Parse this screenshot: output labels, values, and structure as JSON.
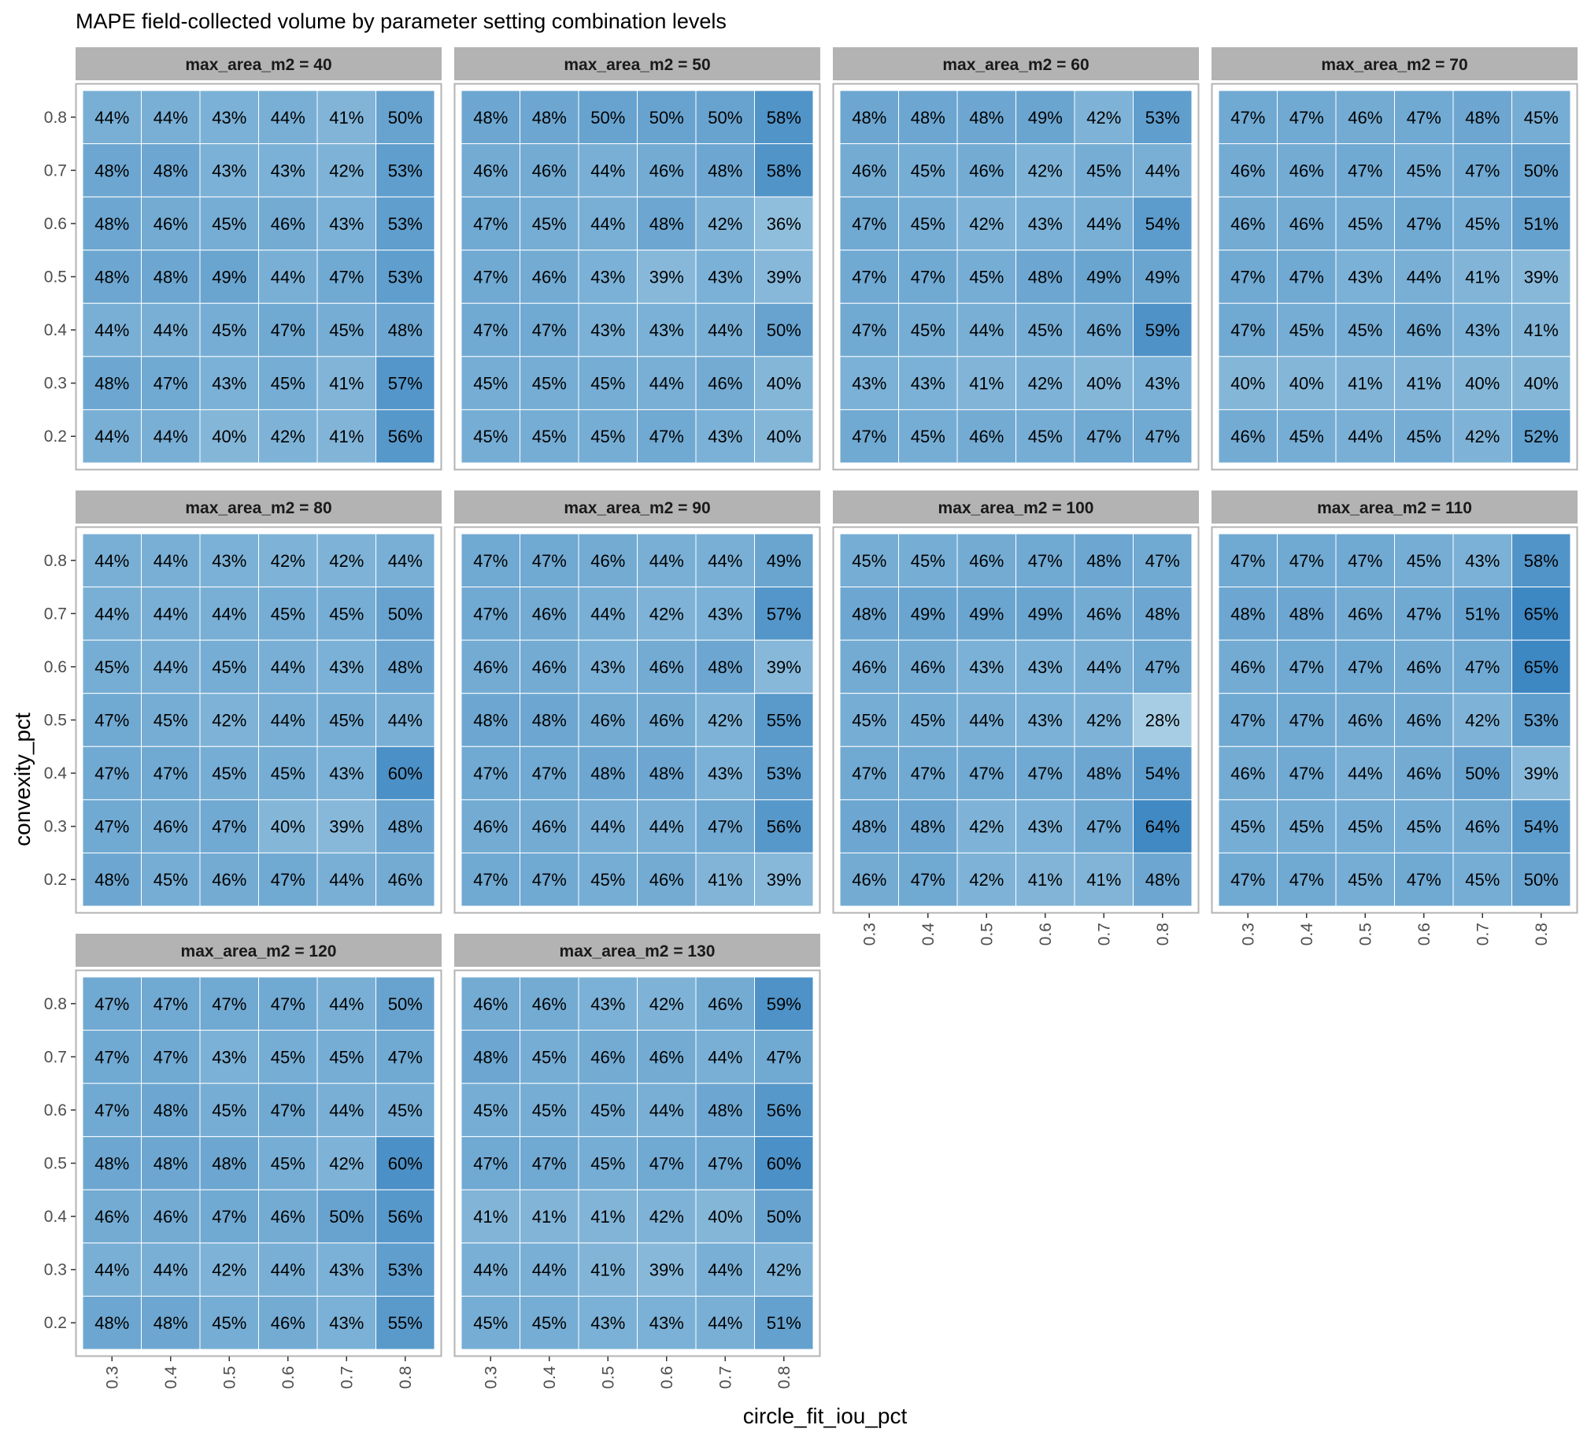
{
  "chart_data": {
    "type": "heatmap",
    "title": "MAPE field-collected volume by parameter setting combination levels",
    "xlabel": "circle_fit_iou_pct",
    "ylabel": "convexity_pct",
    "facet_variable": "max_area_m2",
    "x_categories": [
      "0.3",
      "0.4",
      "0.5",
      "0.6",
      "0.7",
      "0.8"
    ],
    "y_categories": [
      "0.8",
      "0.7",
      "0.6",
      "0.5",
      "0.4",
      "0.3",
      "0.2"
    ],
    "value_format": "percent",
    "color_low": "#a6cde3",
    "color_high": "#3d87c2",
    "value_range": [
      28,
      65
    ],
    "panels": [
      {
        "label": "max_area_m2 = 40",
        "values": [
          [
            44,
            44,
            43,
            44,
            41,
            50
          ],
          [
            48,
            48,
            43,
            43,
            42,
            53
          ],
          [
            48,
            46,
            45,
            46,
            43,
            53
          ],
          [
            48,
            48,
            49,
            44,
            47,
            53
          ],
          [
            44,
            44,
            45,
            47,
            45,
            48
          ],
          [
            48,
            47,
            43,
            45,
            41,
            57
          ],
          [
            44,
            44,
            40,
            42,
            41,
            56
          ]
        ]
      },
      {
        "label": "max_area_m2 = 50",
        "values": [
          [
            48,
            48,
            50,
            50,
            50,
            58
          ],
          [
            46,
            46,
            44,
            46,
            48,
            58
          ],
          [
            47,
            45,
            44,
            48,
            42,
            36
          ],
          [
            47,
            46,
            43,
            39,
            43,
            39
          ],
          [
            47,
            47,
            43,
            43,
            44,
            50
          ],
          [
            45,
            45,
            45,
            44,
            46,
            40
          ],
          [
            45,
            45,
            45,
            47,
            43,
            40
          ]
        ]
      },
      {
        "label": "max_area_m2 = 60",
        "values": [
          [
            48,
            48,
            48,
            49,
            42,
            53
          ],
          [
            46,
            45,
            46,
            42,
            45,
            44
          ],
          [
            47,
            45,
            42,
            43,
            44,
            54
          ],
          [
            47,
            47,
            45,
            48,
            49,
            49
          ],
          [
            47,
            45,
            44,
            45,
            46,
            59
          ],
          [
            43,
            43,
            41,
            42,
            40,
            43
          ],
          [
            47,
            45,
            46,
            45,
            47,
            47
          ]
        ]
      },
      {
        "label": "max_area_m2 = 70",
        "values": [
          [
            47,
            47,
            46,
            47,
            48,
            45
          ],
          [
            46,
            46,
            47,
            45,
            47,
            50
          ],
          [
            46,
            46,
            45,
            47,
            45,
            51
          ],
          [
            47,
            47,
            43,
            44,
            41,
            39
          ],
          [
            47,
            45,
            45,
            46,
            43,
            41
          ],
          [
            40,
            40,
            41,
            41,
            40,
            40
          ],
          [
            46,
            45,
            44,
            45,
            42,
            52
          ]
        ]
      },
      {
        "label": "max_area_m2 = 80",
        "values": [
          [
            44,
            44,
            43,
            42,
            42,
            44
          ],
          [
            44,
            44,
            44,
            45,
            45,
            50
          ],
          [
            45,
            44,
            45,
            44,
            43,
            48
          ],
          [
            47,
            45,
            42,
            44,
            45,
            44
          ],
          [
            47,
            47,
            45,
            45,
            43,
            60
          ],
          [
            47,
            46,
            47,
            40,
            39,
            48
          ],
          [
            48,
            45,
            46,
            47,
            44,
            46
          ]
        ]
      },
      {
        "label": "max_area_m2 = 90",
        "values": [
          [
            47,
            47,
            46,
            44,
            44,
            49
          ],
          [
            47,
            46,
            44,
            42,
            43,
            57
          ],
          [
            46,
            46,
            43,
            46,
            48,
            39
          ],
          [
            48,
            48,
            46,
            46,
            42,
            55
          ],
          [
            47,
            47,
            48,
            48,
            43,
            53
          ],
          [
            46,
            46,
            44,
            44,
            47,
            56
          ],
          [
            47,
            47,
            45,
            46,
            41,
            39
          ]
        ]
      },
      {
        "label": "max_area_m2 = 100",
        "values": [
          [
            45,
            45,
            46,
            47,
            48,
            47
          ],
          [
            48,
            49,
            49,
            49,
            46,
            48
          ],
          [
            46,
            46,
            43,
            43,
            44,
            47
          ],
          [
            45,
            45,
            44,
            43,
            42,
            28
          ],
          [
            47,
            47,
            47,
            47,
            48,
            54
          ],
          [
            48,
            48,
            42,
            43,
            47,
            64
          ],
          [
            46,
            47,
            42,
            41,
            41,
            48
          ]
        ]
      },
      {
        "label": "max_area_m2 = 110",
        "values": [
          [
            47,
            47,
            47,
            45,
            43,
            58
          ],
          [
            48,
            48,
            46,
            47,
            51,
            65
          ],
          [
            46,
            47,
            47,
            46,
            47,
            65
          ],
          [
            47,
            47,
            46,
            46,
            42,
            53
          ],
          [
            46,
            47,
            44,
            46,
            50,
            39
          ],
          [
            45,
            45,
            45,
            45,
            46,
            54
          ],
          [
            47,
            47,
            45,
            47,
            45,
            50
          ]
        ]
      },
      {
        "label": "max_area_m2 = 120",
        "values": [
          [
            47,
            47,
            47,
            47,
            44,
            50
          ],
          [
            47,
            47,
            43,
            45,
            45,
            47
          ],
          [
            47,
            48,
            45,
            47,
            44,
            45
          ],
          [
            48,
            48,
            48,
            45,
            42,
            60
          ],
          [
            46,
            46,
            47,
            46,
            50,
            56
          ],
          [
            44,
            44,
            42,
            44,
            43,
            53
          ],
          [
            48,
            48,
            45,
            46,
            43,
            55
          ]
        ]
      },
      {
        "label": "max_area_m2 = 130",
        "values": [
          [
            46,
            46,
            43,
            42,
            46,
            59
          ],
          [
            48,
            45,
            46,
            46,
            44,
            47
          ],
          [
            45,
            45,
            45,
            44,
            48,
            56
          ],
          [
            47,
            47,
            45,
            47,
            47,
            60
          ],
          [
            41,
            41,
            41,
            42,
            40,
            50
          ],
          [
            44,
            44,
            41,
            39,
            44,
            42
          ],
          [
            45,
            45,
            43,
            43,
            44,
            51
          ]
        ]
      }
    ]
  }
}
